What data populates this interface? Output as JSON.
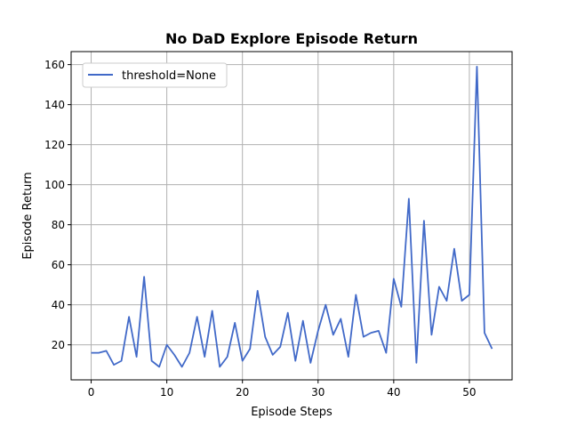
{
  "chart_data": {
    "type": "line",
    "title": "No DaD Explore Episode Return",
    "xlabel": "Episode Steps",
    "ylabel": "Episode Return",
    "xlim": [
      -2.65,
      55.65
    ],
    "ylim": [
      2.5,
      166.5
    ],
    "xticks": [
      0,
      10,
      20,
      30,
      40,
      50
    ],
    "yticks": [
      20,
      40,
      60,
      80,
      100,
      120,
      140,
      160
    ],
    "grid": true,
    "legend": "top-left",
    "series": [
      {
        "name": "threshold=None",
        "color": "#4169c8",
        "x": [
          0,
          1,
          2,
          3,
          4,
          5,
          6,
          7,
          8,
          9,
          10,
          11,
          12,
          13,
          14,
          15,
          16,
          17,
          18,
          19,
          20,
          21,
          22,
          23,
          24,
          25,
          26,
          27,
          28,
          29,
          30,
          31,
          32,
          33,
          34,
          35,
          36,
          37,
          38,
          39,
          40,
          41,
          42,
          43,
          44,
          45,
          46,
          47,
          48,
          49,
          50,
          51,
          52,
          53
        ],
        "values": [
          16,
          16,
          17,
          10,
          12,
          34,
          14,
          54,
          12,
          9,
          20,
          15,
          9,
          16,
          34,
          14,
          37,
          9,
          14,
          31,
          12,
          18,
          47,
          24,
          15,
          19,
          36,
          12,
          32,
          11,
          27,
          40,
          25,
          33,
          14,
          45,
          24,
          26,
          27,
          16,
          53,
          39,
          93,
          11,
          82,
          25,
          49,
          42,
          68,
          42,
          45,
          159,
          26,
          18
        ]
      }
    ]
  }
}
